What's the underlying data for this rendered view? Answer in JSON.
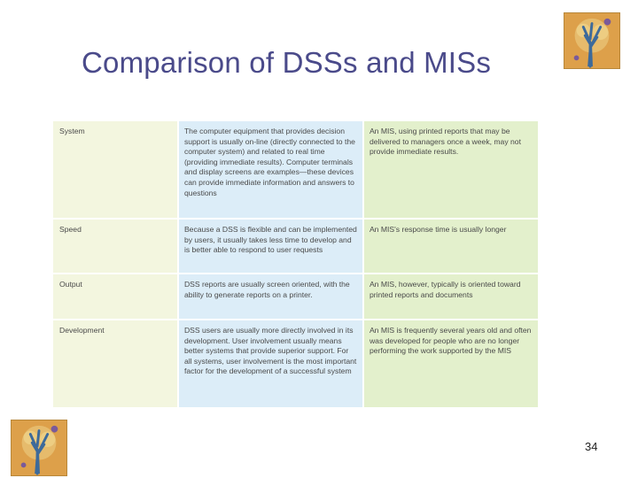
{
  "slide": {
    "title": "Comparison of DSSs and MISs",
    "page_number": "34"
  },
  "logos": {
    "top_right_icon": "tree-logo-icon",
    "bottom_left_icon": "tree-logo-icon"
  },
  "table": {
    "rows": [
      {
        "label": "System",
        "dss": "The computer equipment that provides decision support is usually on-line (directly connected to the computer system) and related to real time (providing immediate results). Computer terminals and display screens are examples—these devices can provide immediate information and answers to questions",
        "mis": "An MIS, using printed reports that may be delivered to managers once a week, may not provide immediate results."
      },
      {
        "label": "Speed",
        "dss": "Because a DSS is flexible and can be implemented by users, it usually takes less time to develop and is better able to respond to user requests",
        "mis": "An MIS's response time is usually longer"
      },
      {
        "label": "Output",
        "dss": "DSS reports are usually screen oriented, with the ability to generate reports on a printer.",
        "mis": "An MIS, however, typically is oriented toward printed reports and documents"
      },
      {
        "label": "Development",
        "dss": "DSS users are usually more directly involved in its development. User involvement usually means better systems that provide superior support. For all systems, user involvement is the most important factor for the development of a successful system",
        "mis": "An MIS is frequently several years old and often was developed for people who are no longer performing the work supported by the MIS"
      }
    ]
  }
}
